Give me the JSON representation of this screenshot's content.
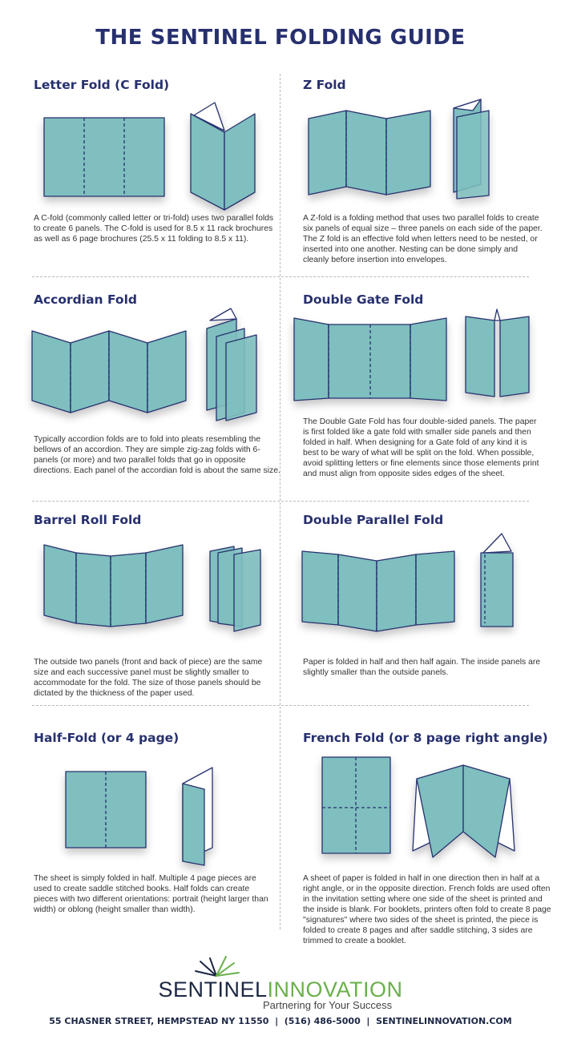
{
  "title": "THE SENTINEL FOLDING GUIDE",
  "sections": [
    {
      "heading": "Letter Fold (C Fold)",
      "text": "A C-fold (commonly called letter or tri-fold) uses two parallel folds to create 6 panels. The C-fold is used for 8.5 x 11 rack brochures as well as 6 page brochures (25.5 x 11 folding to 8.5 x 11)."
    },
    {
      "heading": "Z Fold",
      "text": "A Z-fold is a folding method that uses two parallel folds to create six panels of equal size – three panels on each side of the paper. The Z fold is an effective fold when letters need to be nested, or inserted into one another. Nesting can be done simply and cleanly before insertion into envelopes."
    },
    {
      "heading": "Accordian Fold",
      "text": "Typically accordion folds are to fold into pleats resembling the bellows of an accordion. They are simple zig-zag folds with 6-panels (or more) and two parallel folds that go in opposite directions. Each panel of the accordian fold is about the same size."
    },
    {
      "heading": "Double Gate Fold",
      "text": "The Double Gate Fold has four double-sided panels. The paper is first folded like a gate fold with smaller side panels and then folded in half. When designing for a Gate fold of any kind it is best to be wary of what will be split on the fold. When possible, avoid splitting letters or fine elements since those elements print and must align from opposite sides edges of the sheet."
    },
    {
      "heading": "Barrel Roll Fold",
      "text": "The outside two panels (front and back of piece) are the same size and each successive panel must be slightly smaller to accommodate for the fold. The size of those panels should be dictated by the thickness of the paper used."
    },
    {
      "heading": "Double Parallel Fold",
      "text": "Paper is folded in half and then half again. The inside panels are slightly smaller than the outside panels."
    },
    {
      "heading": "Half-Fold (or 4 page)",
      "text": "The sheet is simply folded in half. Multiple 4 page pieces are used to create saddle stitched books. Half folds can create pieces with two different orientations: portrait (height larger than width) or oblong (height smaller than width)."
    },
    {
      "heading": "French Fold (or 8 page right angle)",
      "text": "A sheet of paper is folded in half in one direction then in half at a right angle, or in the opposite direction. French folds are used often in the invitation setting where one side of the sheet is printed and the inside is blank. For booklets, printers often fold to create 8 page \"signatures\" where two sides of the sheet is printed, the piece is folded to create 8 pages and after saddle stitching, 3 sides are trimmed to create a booklet."
    }
  ],
  "footer": {
    "logo_part1": "SENTINEL",
    "logo_part2": "INNOVATION",
    "tagline": "Partnering for Your Success",
    "address": "55 CHASNER STREET, HEMPSTEAD NY 11550  |  (516) 486-5000  |  SENTINELINNOVATION.COM"
  },
  "colors": {
    "navy": "#27306e",
    "teal": "#7fbfbf",
    "green": "#6ab04c"
  }
}
